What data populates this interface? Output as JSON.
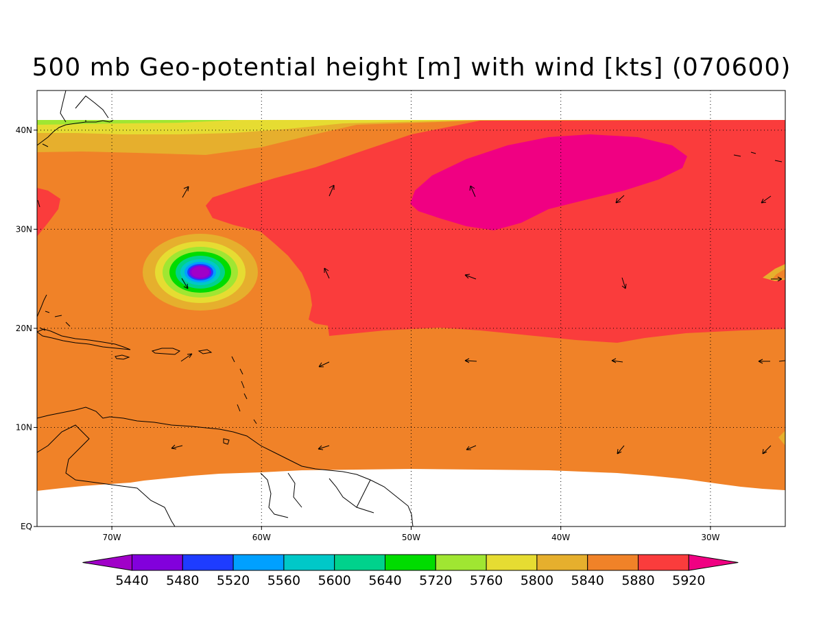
{
  "title": "500 mb Geo-potential height [m] with wind [kts] (070600)",
  "map": {
    "lon_range": [
      -75,
      -25
    ],
    "lat_range": [
      0,
      44
    ],
    "gridlines": "dotted",
    "lat_ticks": [
      {
        "value": 0,
        "label": "EQ"
      },
      {
        "value": 10,
        "label": "10N"
      },
      {
        "value": 20,
        "label": "20N"
      },
      {
        "value": 30,
        "label": "30N"
      },
      {
        "value": 40,
        "label": "40N"
      }
    ],
    "lon_ticks": [
      {
        "value": -70,
        "label": "70W"
      },
      {
        "value": -60,
        "label": "60W"
      },
      {
        "value": -50,
        "label": "50W"
      },
      {
        "value": -40,
        "label": "40W"
      },
      {
        "value": -30,
        "label": "30W"
      }
    ]
  },
  "colorbar": {
    "colors": [
      "#a000c8",
      "#8200dc",
      "#1e3cff",
      "#00a0ff",
      "#00c8c8",
      "#00d28c",
      "#00dc00",
      "#a0e632",
      "#e6dc32",
      "#e6af2d",
      "#f08228",
      "#fa3c3c",
      "#f00082"
    ],
    "labels": [
      "5440",
      "5480",
      "5520",
      "5560",
      "5600",
      "5640",
      "5720",
      "5760",
      "5800",
      "5840",
      "5880",
      "5920"
    ]
  },
  "chart_data": {
    "type": "heatmap",
    "title": "500 mb Geo-potential height [m] with wind [kts] (070600)",
    "variable": "500 mb geopotential height",
    "units": "m",
    "levels": [
      5440,
      5480,
      5520,
      5560,
      5600,
      5640,
      5720,
      5760,
      5800,
      5840,
      5880,
      5920
    ],
    "regions": [
      {
        "range": "5840-5880",
        "description": "background over most of domain"
      },
      {
        "range": "5880-5920",
        "description": "subtropical ridge 20N-40N, 58W-25W"
      },
      {
        "range": ">5920",
        "description": "ridge center near 36N, 42W"
      },
      {
        "range": "<5440",
        "description": "closed low center near 26N, 64W"
      }
    ],
    "wind_vectors": "sparse arrows every ~10 deg"
  }
}
